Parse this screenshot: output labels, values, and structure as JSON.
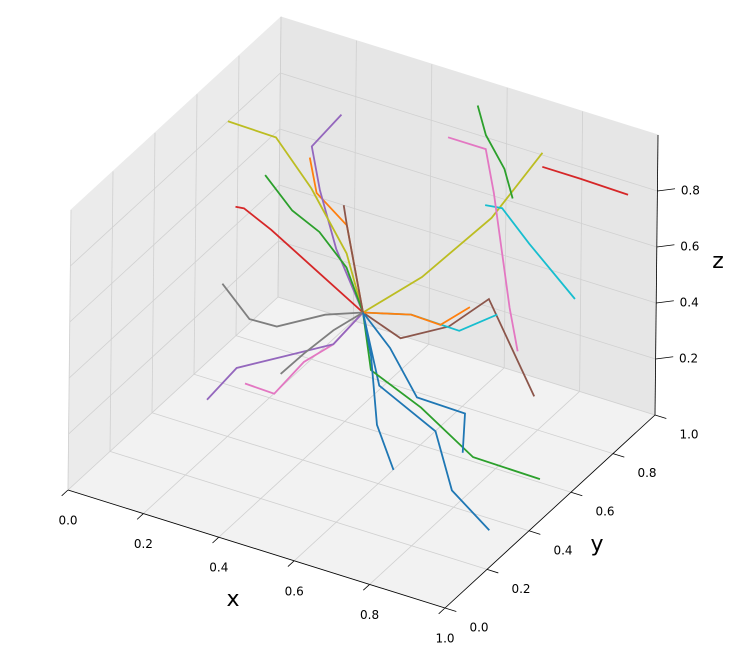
{
  "chart_data": {
    "type": "line3d",
    "xlabel": "x",
    "ylabel": "y",
    "zlabel": "z",
    "xlim": [
      0,
      1
    ],
    "ylim": [
      0,
      1
    ],
    "zlim": [
      0,
      1
    ],
    "xticks": [
      {
        "value": 0,
        "label": "0.0"
      },
      0.2,
      0.4,
      0.6,
      0.8,
      {
        "value": 1,
        "label": "1.0"
      }
    ],
    "yticks": [
      {
        "value": 0,
        "label": "0.0"
      },
      0.2,
      0.4,
      0.6,
      0.8,
      {
        "value": 1,
        "label": "1.0"
      }
    ],
    "zticks": [
      0.2,
      0.4,
      0.6,
      0.8
    ],
    "grid": true,
    "series": [
      {
        "color": "#1f77b4",
        "x": [
          0.5,
          0.6,
          0.75,
          0.85,
          0.95
        ],
        "y": [
          0.5,
          0.4,
          0.4,
          0.3,
          0.3
        ],
        "z": [
          0.5,
          0.35,
          0.25,
          0.15,
          0.05
        ]
      },
      {
        "color": "#ff7f0e",
        "x": [
          0.5,
          0.45,
          0.4,
          0.33,
          0.3
        ],
        "y": [
          0.5,
          0.55,
          0.6,
          0.58,
          0.6
        ],
        "z": [
          0.5,
          0.6,
          0.7,
          0.8,
          0.9
        ]
      },
      {
        "color": "#2ca02c",
        "x": [
          0.5,
          0.55,
          0.7,
          0.85,
          1.0
        ],
        "y": [
          0.5,
          0.45,
          0.42,
          0.4,
          0.45
        ],
        "z": [
          0.5,
          0.35,
          0.3,
          0.2,
          0.15
        ]
      },
      {
        "color": "#d62728",
        "x": [
          0.5,
          0.35,
          0.2,
          0.1,
          0.05
        ],
        "y": [
          0.5,
          0.55,
          0.6,
          0.65,
          0.7
        ],
        "z": [
          0.5,
          0.55,
          0.6,
          0.6,
          0.55
        ]
      },
      {
        "color": "#9467bd",
        "x": [
          0.5,
          0.4,
          0.3,
          0.25,
          0.3
        ],
        "y": [
          0.5,
          0.55,
          0.65,
          0.7,
          0.75
        ],
        "z": [
          0.5,
          0.65,
          0.75,
          0.85,
          0.95
        ]
      },
      {
        "color": "#8c564b",
        "x": [
          0.5,
          0.6,
          0.7,
          0.75,
          0.9
        ],
        "y": [
          0.5,
          0.5,
          0.55,
          0.65,
          0.6
        ],
        "z": [
          0.5,
          0.45,
          0.5,
          0.55,
          0.3
        ]
      },
      {
        "color": "#e377c2",
        "x": [
          0.5,
          0.45,
          0.4,
          0.35,
          0.3
        ],
        "y": [
          0.5,
          0.45,
          0.4,
          0.35,
          0.3
        ],
        "z": [
          0.5,
          0.4,
          0.35,
          0.25,
          0.3
        ]
      },
      {
        "color": "#7f7f7f",
        "x": [
          0.5,
          0.4,
          0.3,
          0.2,
          0.1
        ],
        "y": [
          0.5,
          0.5,
          0.45,
          0.5,
          0.55
        ],
        "z": [
          0.5,
          0.45,
          0.4,
          0.35,
          0.4
        ]
      },
      {
        "color": "#bcbd22",
        "x": [
          0.5,
          0.4,
          0.25,
          0.1,
          0
        ],
        "y": [
          0.5,
          0.6,
          0.7,
          0.8,
          0.75
        ],
        "z": [
          0.5,
          0.6,
          0.7,
          0.75,
          0.8
        ]
      },
      {
        "color": "#17becf",
        "x": [
          0.5,
          0.6,
          0.7,
          0.8
        ],
        "y": [
          0.5,
          0.55,
          0.6,
          0.6
        ],
        "z": [
          0.5,
          0.5,
          0.45,
          0.55
        ]
      },
      {
        "color": "#1f77b4",
        "x": [
          0.5,
          0.6,
          0.7,
          0.8,
          0.85
        ],
        "y": [
          0.5,
          0.45,
          0.4,
          0.45,
          0.35
        ],
        "z": [
          0.5,
          0.45,
          0.35,
          0.3,
          0.25
        ]
      },
      {
        "color": "#bcbd22",
        "x": [
          0.5,
          0.6,
          0.7,
          0.75
        ],
        "y": [
          0.5,
          0.6,
          0.75,
          0.9
        ],
        "z": [
          0.5,
          0.6,
          0.75,
          0.9
        ]
      },
      {
        "color": "#2ca02c",
        "x": [
          0.5,
          0.4,
          0.3,
          0.2,
          0.1
        ],
        "y": [
          0.5,
          0.6,
          0.65,
          0.7,
          0.75
        ],
        "z": [
          0.5,
          0.55,
          0.6,
          0.6,
          0.65
        ]
      },
      {
        "color": "#9467bd",
        "x": [
          0.5,
          0.45,
          0.35,
          0.25,
          0.2
        ],
        "y": [
          0.5,
          0.45,
          0.4,
          0.35,
          0.3
        ],
        "z": [
          0.5,
          0.4,
          0.35,
          0.3,
          0.2
        ]
      },
      {
        "color": "#ff7f0e",
        "x": [
          0.5,
          0.6,
          0.65,
          0.7
        ],
        "y": [
          0.5,
          0.55,
          0.6,
          0.65
        ],
        "z": [
          0.5,
          0.5,
          0.45,
          0.5
        ]
      },
      {
        "color": "#17becf",
        "x": [
          0.6,
          0.65,
          0.7,
          0.8,
          0.95
        ],
        "y": [
          0.9,
          0.85,
          0.8,
          0.75,
          0.7
        ],
        "z": [
          0.65,
          0.7,
          0.75,
          0.7,
          0.6
        ]
      },
      {
        "color": "#2ca02c",
        "x": [
          0.55,
          0.6,
          0.65,
          0.7
        ],
        "y": [
          0.95,
          0.9,
          0.9,
          0.85
        ],
        "z": [
          0.95,
          0.9,
          0.8,
          0.75
        ]
      },
      {
        "color": "#d62728",
        "x": [
          0.75,
          0.85,
          0.95
        ],
        "y": [
          0.9,
          0.9,
          0.95
        ],
        "z": [
          0.85,
          0.85,
          0.8
        ]
      },
      {
        "color": "#e377c2",
        "x": [
          0.5,
          0.6,
          0.65,
          0.7,
          0.75,
          0.8
        ],
        "y": [
          0.9,
          0.9,
          0.85,
          0.8,
          0.75,
          0.7
        ],
        "z": [
          0.85,
          0.85,
          0.75,
          0.6,
          0.45,
          0.35
        ]
      },
      {
        "color": "#8c564b",
        "x": [
          0.5,
          0.45,
          0.4,
          0.38
        ],
        "y": [
          0.5,
          0.55,
          0.6,
          0.62
        ],
        "z": [
          0.5,
          0.6,
          0.7,
          0.75
        ]
      },
      {
        "color": "#7f7f7f",
        "x": [
          0.5,
          0.45,
          0.4,
          0.35
        ],
        "y": [
          0.5,
          0.45,
          0.4,
          0.38
        ],
        "z": [
          0.5,
          0.45,
          0.38,
          0.3
        ]
      },
      {
        "color": "#1f77b4",
        "x": [
          0.5,
          0.55,
          0.65,
          0.75
        ],
        "y": [
          0.5,
          0.45,
          0.3,
          0.2
        ],
        "z": [
          0.5,
          0.4,
          0.3,
          0.25
        ]
      }
    ]
  }
}
